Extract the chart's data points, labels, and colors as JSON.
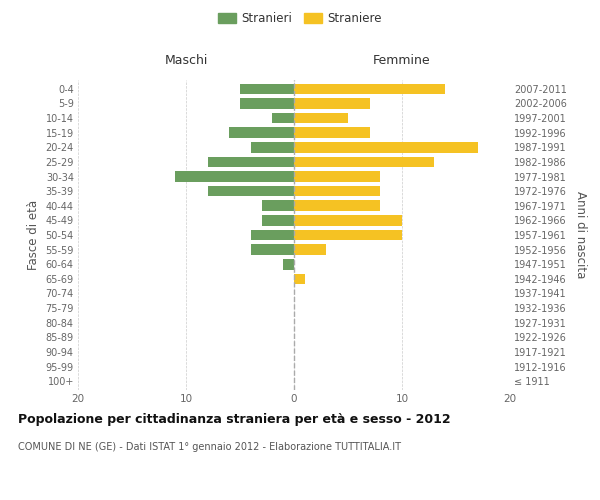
{
  "age_groups": [
    "100+",
    "95-99",
    "90-94",
    "85-89",
    "80-84",
    "75-79",
    "70-74",
    "65-69",
    "60-64",
    "55-59",
    "50-54",
    "45-49",
    "40-44",
    "35-39",
    "30-34",
    "25-29",
    "20-24",
    "15-19",
    "10-14",
    "5-9",
    "0-4"
  ],
  "birth_years": [
    "≤ 1911",
    "1912-1916",
    "1917-1921",
    "1922-1926",
    "1927-1931",
    "1932-1936",
    "1937-1941",
    "1942-1946",
    "1947-1951",
    "1952-1956",
    "1957-1961",
    "1962-1966",
    "1967-1971",
    "1972-1976",
    "1977-1981",
    "1982-1986",
    "1987-1991",
    "1992-1996",
    "1997-2001",
    "2002-2006",
    "2007-2011"
  ],
  "males": [
    0,
    0,
    0,
    0,
    0,
    0,
    0,
    0,
    1,
    4,
    4,
    3,
    3,
    8,
    11,
    8,
    4,
    6,
    2,
    5,
    5
  ],
  "females": [
    0,
    0,
    0,
    0,
    0,
    0,
    0,
    1,
    0,
    3,
    10,
    10,
    8,
    8,
    8,
    13,
    17,
    7,
    5,
    7,
    14
  ],
  "male_color": "#6a9e5e",
  "female_color": "#f5c223",
  "title": "Popolazione per cittadinanza straniera per età e sesso - 2012",
  "subtitle": "COMUNE DI NE (GE) - Dati ISTAT 1° gennaio 2012 - Elaborazione TUTTITALIA.IT",
  "xlabel_left": "Maschi",
  "xlabel_right": "Femmine",
  "ylabel_left": "Fasce di età",
  "ylabel_right": "Anni di nascita",
  "legend_male": "Stranieri",
  "legend_female": "Straniere",
  "xlim": 20,
  "background_color": "#ffffff",
  "grid_color": "#cccccc"
}
